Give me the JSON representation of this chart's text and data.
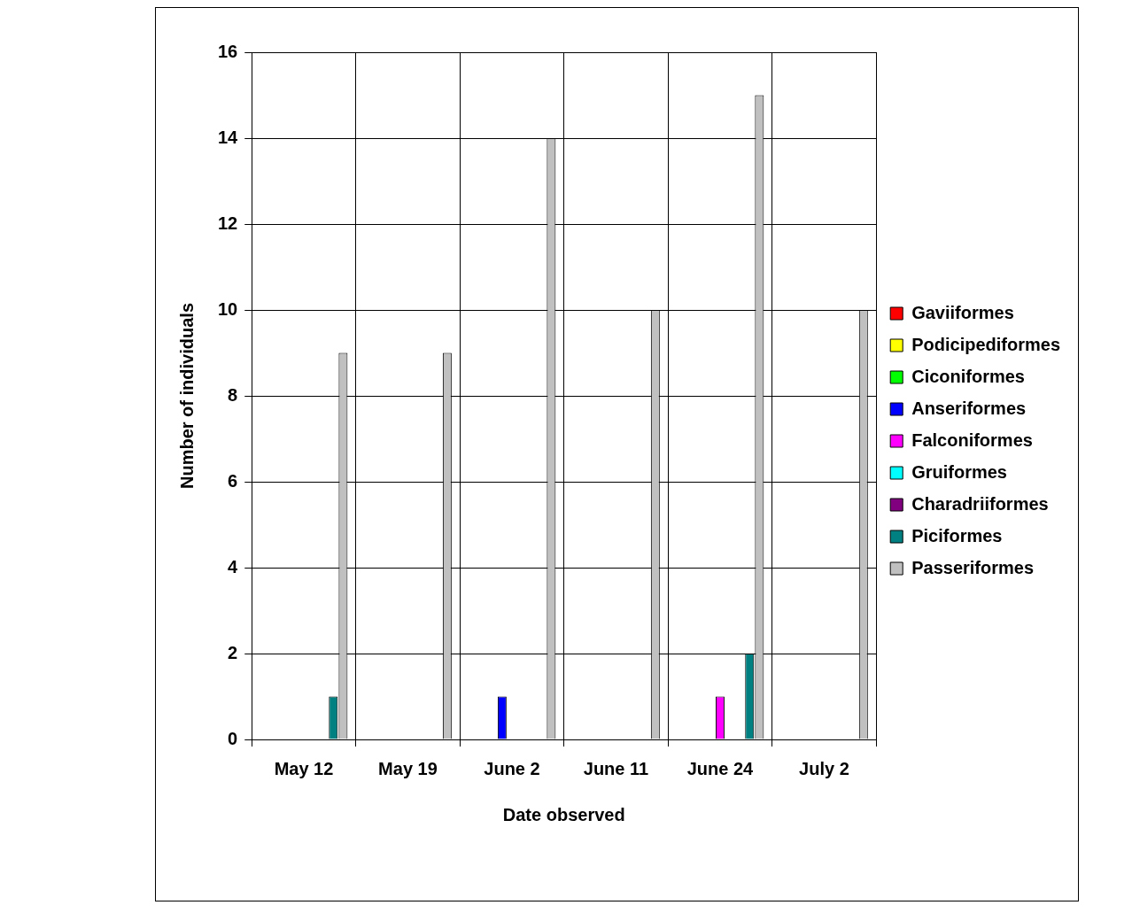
{
  "chart_data": {
    "type": "bar",
    "xlabel": "Date observed",
    "ylabel": "Number of individuals",
    "categories": [
      "May 12",
      "May 19",
      "June 2",
      "June 11",
      "June 24",
      "July 2"
    ],
    "series": [
      {
        "name": "Gaviiformes",
        "color": "#ff0000",
        "values": [
          0,
          0,
          0,
          0,
          0,
          0
        ]
      },
      {
        "name": "Podicipediformes",
        "color": "#ffff00",
        "values": [
          0,
          0,
          0,
          0,
          0,
          0
        ]
      },
      {
        "name": "Ciconiformes",
        "color": "#00ff00",
        "values": [
          0,
          0,
          0,
          0,
          0,
          0
        ]
      },
      {
        "name": "Anseriformes",
        "color": "#0000ff",
        "values": [
          0,
          0,
          1,
          0,
          0,
          0
        ]
      },
      {
        "name": "Falconiformes",
        "color": "#ff00ff",
        "values": [
          0,
          0,
          0,
          0,
          1,
          0
        ]
      },
      {
        "name": "Gruiformes",
        "color": "#00ffff",
        "values": [
          0,
          0,
          0,
          0,
          0,
          0
        ]
      },
      {
        "name": "Charadriiformes",
        "color": "#800080",
        "values": [
          0,
          0,
          0,
          0,
          0,
          0
        ]
      },
      {
        "name": "Piciformes",
        "color": "#008080",
        "values": [
          1,
          0,
          0,
          0,
          2,
          0
        ]
      },
      {
        "name": "Passeriformes",
        "color": "#c0c0c0",
        "values": [
          9,
          9,
          14,
          10,
          15,
          10
        ]
      }
    ],
    "ylim": [
      0,
      16
    ],
    "yticks": [
      0,
      2,
      4,
      6,
      8,
      10,
      12,
      14,
      16
    ],
    "grid": true,
    "legend": "right"
  }
}
